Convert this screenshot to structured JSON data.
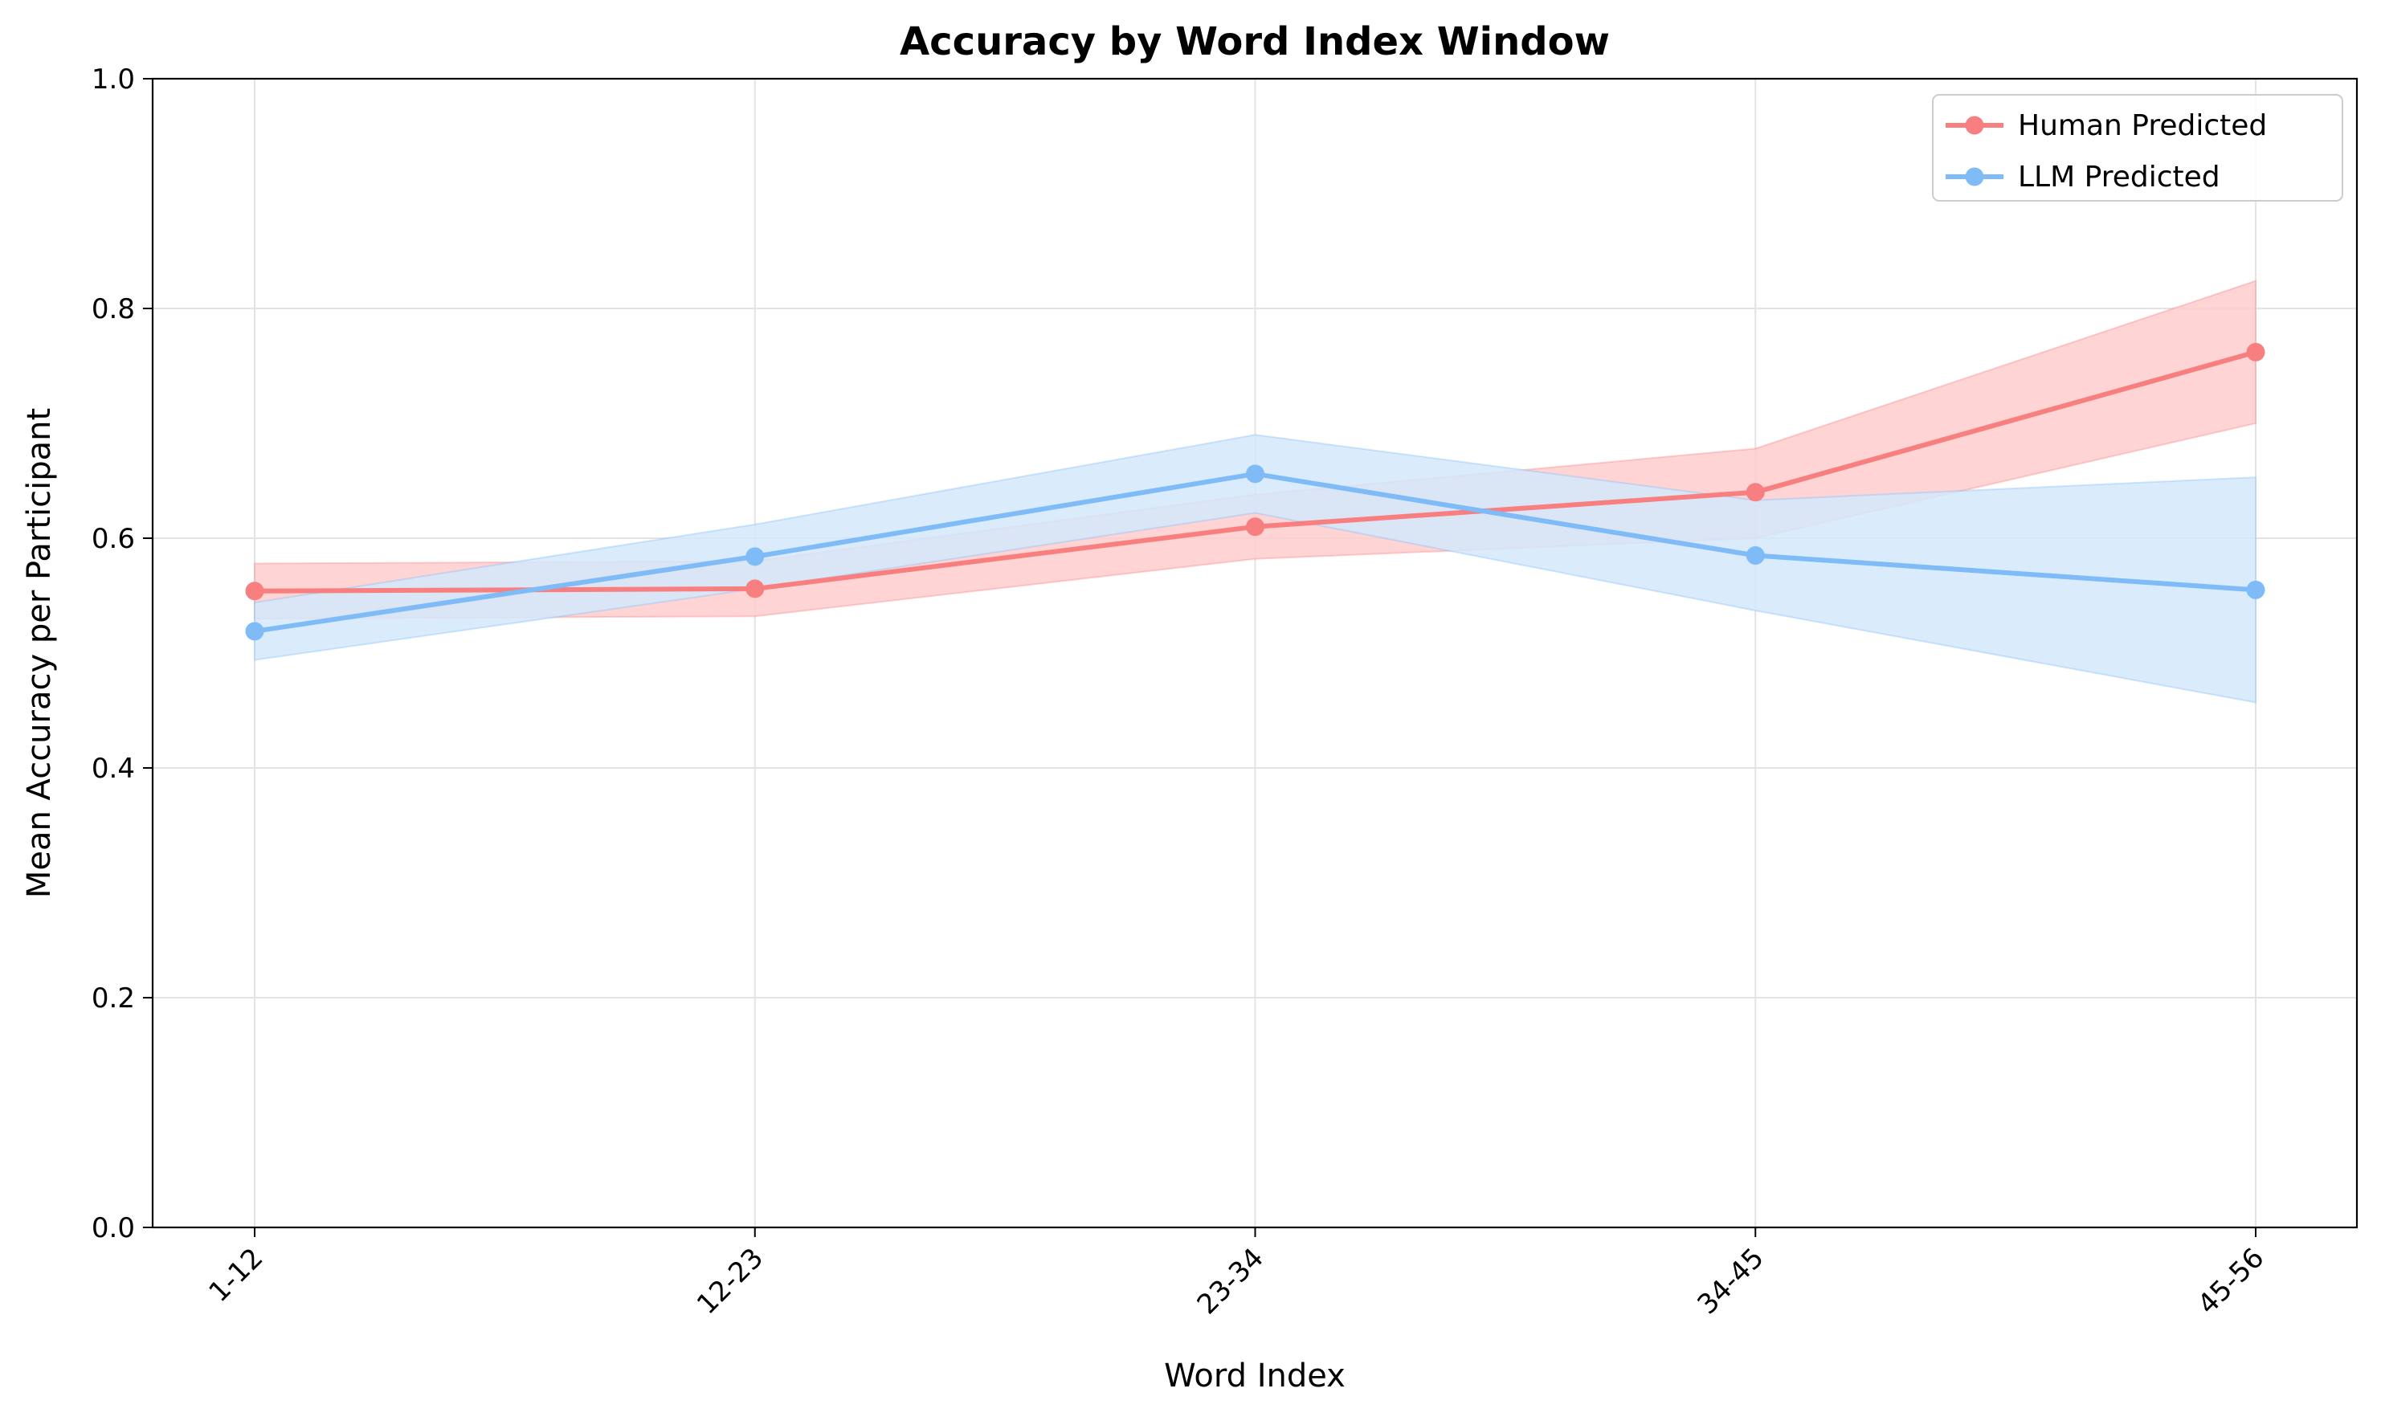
{
  "chart_data": {
    "type": "line",
    "title": "Accuracy by Word Index Window",
    "xlabel": "Word Index",
    "ylabel": "Mean Accuracy per Participant",
    "categories": [
      "1-12",
      "12-23",
      "23-34",
      "34-45",
      "45-56"
    ],
    "ylim": [
      0,
      1
    ],
    "yticks": [
      "0.0",
      "0.2",
      "0.4",
      "0.6",
      "0.8",
      "1.0"
    ],
    "grid": true,
    "legend_position": "top-right",
    "series": [
      {
        "name": "Human Predicted",
        "color": "#f77f7f",
        "band_color": "#ffcccc",
        "marker": "circle",
        "values": [
          0.554,
          0.556,
          0.61,
          0.64,
          0.762
        ],
        "lower": [
          0.53,
          0.532,
          0.582,
          0.6,
          0.7
        ],
        "upper": [
          0.578,
          0.58,
          0.638,
          0.678,
          0.824
        ]
      },
      {
        "name": "LLM Predicted",
        "color": "#7fbbf7",
        "band_color": "#d4e8fb",
        "marker": "circle",
        "values": [
          0.519,
          0.584,
          0.656,
          0.585,
          0.555
        ],
        "lower": [
          0.494,
          0.556,
          0.622,
          0.537,
          0.457
        ],
        "upper": [
          0.544,
          0.612,
          0.69,
          0.633,
          0.653
        ]
      }
    ]
  }
}
